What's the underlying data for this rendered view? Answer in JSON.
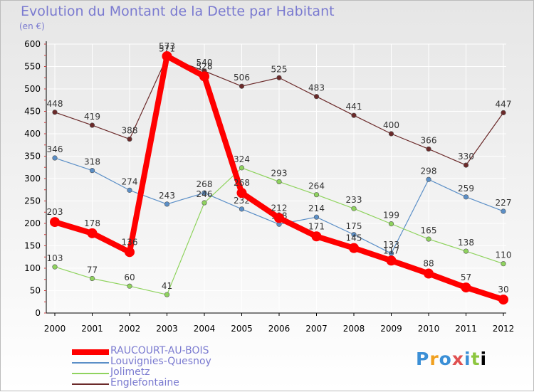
{
  "chart_data": {
    "type": "line",
    "title": "Evolution du Montant de la Dette par Habitant",
    "subtitle": "(en €)",
    "xlabel": "",
    "ylabel": "",
    "ylim": [
      0,
      600
    ],
    "yticks": [
      0,
      50,
      100,
      150,
      200,
      250,
      300,
      350,
      400,
      450,
      500,
      550,
      600
    ],
    "categories": [
      "2000",
      "2001",
      "2002",
      "2003",
      "2004",
      "2005",
      "2006",
      "2007",
      "2008",
      "2009",
      "2010",
      "2011",
      "2012"
    ],
    "grid": true,
    "legend_position": "bottom-left",
    "series": [
      {
        "name": "Englefontaine",
        "color": "#6b2a2a",
        "values": [
          448,
          419,
          388,
          571,
          540,
          506,
          525,
          483,
          441,
          400,
          366,
          330,
          447
        ]
      },
      {
        "name": "Louvignies-Quesnoy",
        "color": "#5b8fc7",
        "values": [
          346,
          318,
          274,
          243,
          268,
          232,
          198,
          214,
          175,
          133,
          298,
          259,
          227
        ]
      },
      {
        "name": "Jolimetz",
        "color": "#8fd35e",
        "values": [
          103,
          77,
          60,
          41,
          246,
          324,
          293,
          264,
          233,
          199,
          165,
          138,
          110
        ]
      },
      {
        "name": "RAUCOURT-AU-BOIS",
        "color": "#ff0000",
        "values": [
          203,
          178,
          136,
          573,
          528,
          268,
          212,
          171,
          145,
          117,
          88,
          57,
          30
        ]
      }
    ]
  },
  "legend": {
    "items": [
      {
        "label": "RAUCOURT-AU-BOIS",
        "color": "#ff0000"
      },
      {
        "label": "Louvignies-Quesnoy",
        "color": "#5b8fc7"
      },
      {
        "label": "Jolimetz",
        "color": "#8fd35e"
      },
      {
        "label": "Englefontaine",
        "color": "#6b2a2a"
      }
    ]
  },
  "logo": {
    "text": "Proxiti"
  }
}
